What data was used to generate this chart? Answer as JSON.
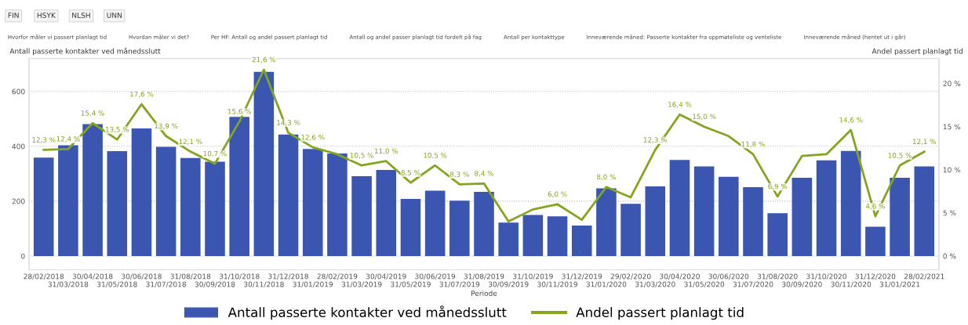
{
  "chart_data": {
    "type": "bar",
    "categories": [
      "28/02/2018",
      "31/03/2018",
      "30/04/2018",
      "31/05/2018",
      "30/06/2018",
      "31/07/2018",
      "31/08/2018",
      "30/09/2018",
      "31/10/2018",
      "30/11/2018",
      "31/12/2018",
      "31/01/2019",
      "28/02/2019",
      "31/03/2019",
      "30/04/2019",
      "31/05/2019",
      "30/06/2019",
      "31/07/2019",
      "31/08/2019",
      "30/09/2019",
      "31/10/2019",
      "30/11/2019",
      "31/12/2019",
      "31/01/2020",
      "29/02/2020",
      "31/03/2020",
      "30/04/2020",
      "31/05/2020",
      "30/06/2020",
      "31/07/2020",
      "31/08/2020",
      "30/09/2020",
      "31/10/2020",
      "30/11/2020",
      "31/12/2020",
      "31/01/2021",
      "28/02/2021"
    ],
    "series": [
      {
        "name": "Antall passerte kontakter ved månedsslutt",
        "color": "#3a56b0",
        "values": [
          359,
          404,
          481,
          382,
          465,
          398,
          357,
          344,
          507,
          671,
          443,
          390,
          374,
          291,
          314,
          208,
          238,
          202,
          234,
          122,
          150,
          145,
          111,
          247,
          190,
          254,
          350,
          327,
          289,
          251,
          156,
          285,
          349,
          383,
          107,
          285,
          327
        ]
      },
      {
        "name": "Andel passert planlagt tid",
        "type": "line",
        "axis": "y2",
        "color": "#84a51d",
        "values": [
          12.3,
          12.4,
          15.4,
          13.5,
          17.6,
          13.9,
          12.1,
          10.7,
          15.6,
          21.6,
          14.3,
          12.6,
          11.8,
          10.5,
          11.0,
          8.5,
          10.5,
          8.3,
          8.4,
          4.0,
          5.4,
          6.0,
          4.2,
          8.0,
          6.8,
          12.3,
          16.4,
          15.0,
          13.9,
          11.8,
          6.9,
          11.6,
          11.8,
          14.6,
          4.6,
          10.5,
          12.1
        ],
        "value_labels": [
          "12,3 %",
          "12,4 %",
          "15,4 %",
          "13,5 %",
          "17,6 %",
          "13,9 %",
          "12,1 %",
          "10,7 %",
          "15,6 %",
          "21,6 %",
          "14,3 %",
          "12,6 %",
          null,
          "10,5 %",
          "11,0 %",
          "8,5 %",
          "10,5 %",
          "8,3 %",
          "8,4 %",
          null,
          null,
          "6,0 %",
          null,
          "8,0 %",
          null,
          "12,3 %",
          "16,4 %",
          "15,0 %",
          null,
          "11,8 %",
          "6,9 %",
          null,
          null,
          "14,6 %",
          "4,6 %",
          "10,5 %",
          "12,1 %"
        ]
      }
    ],
    "xlabel": "Periode",
    "ylabel": "Antall passerte kontakter ved månedsslutt",
    "y2label": "Andel passert planlagt tid",
    "ylim": [
      -50,
      720
    ],
    "yticks": [
      0,
      200,
      400,
      600
    ],
    "y2lim": [
      -1.6,
      22.9
    ],
    "y2ticks": [
      {
        "value": 0,
        "label": "0 %"
      },
      {
        "value": 5,
        "label": "5 %"
      },
      {
        "value": 10,
        "label": "10 %"
      },
      {
        "value": 15,
        "label": "15 %"
      },
      {
        "value": 20,
        "label": "20 %"
      }
    ],
    "grid": "y",
    "legend": "bottom",
    "annotations": [
      "FIN",
      "HSYK",
      "NLSH",
      "UNN",
      "Hvorfor måler vi passert planlagt tid",
      "Hvordan måler vi det?",
      "Per HF: Antall og andel passert planlagt tid",
      "Antall og andel passer planlagt tid fordelt på fag",
      "Antall per kontakttype",
      "Inneværende måned: Passerte kontakter fra oppmøteliste og venteliste",
      "Inneværende måned (hentet ut i går)"
    ]
  }
}
